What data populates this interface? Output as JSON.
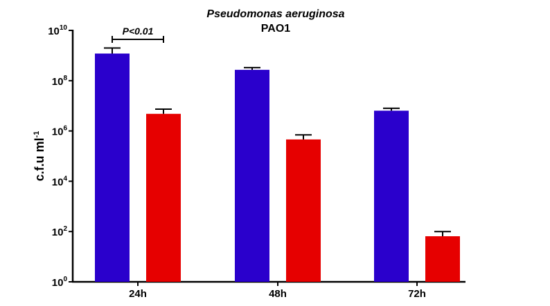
{
  "chart_data": {
    "type": "bar",
    "title": "Pseudomonas aeruginosa",
    "subtitle": "PAO1",
    "ylabel": "c.f.u ml",
    "ylabel_superscript": "-1",
    "xlabel": "",
    "yscale": "log",
    "ylim": [
      1,
      10000000000
    ],
    "yticks": [
      {
        "base": "10",
        "exp": "10"
      },
      {
        "base": "10",
        "exp": "8"
      },
      {
        "base": "10",
        "exp": "6"
      },
      {
        "base": "10",
        "exp": "4"
      },
      {
        "base": "10",
        "exp": "2"
      },
      {
        "base": "10",
        "exp": "0"
      }
    ],
    "ytick_values": [
      10000000000,
      100000000,
      1000000,
      10000,
      100,
      1
    ],
    "categories": [
      "24h",
      "48h",
      "72h"
    ],
    "series": [
      {
        "color": "#2a00cc",
        "values": [
          1200000000,
          270000000,
          6400000
        ],
        "error_upper": [
          2000000000,
          330000000,
          8000000
        ]
      },
      {
        "color": "#e60000",
        "values": [
          4800000,
          460000,
          65
        ],
        "error_upper": [
          7400000,
          700000,
          100
        ]
      }
    ],
    "annotations": [
      {
        "text": "P<0.01",
        "category": "24h"
      }
    ],
    "grid": false,
    "legend": "none"
  }
}
